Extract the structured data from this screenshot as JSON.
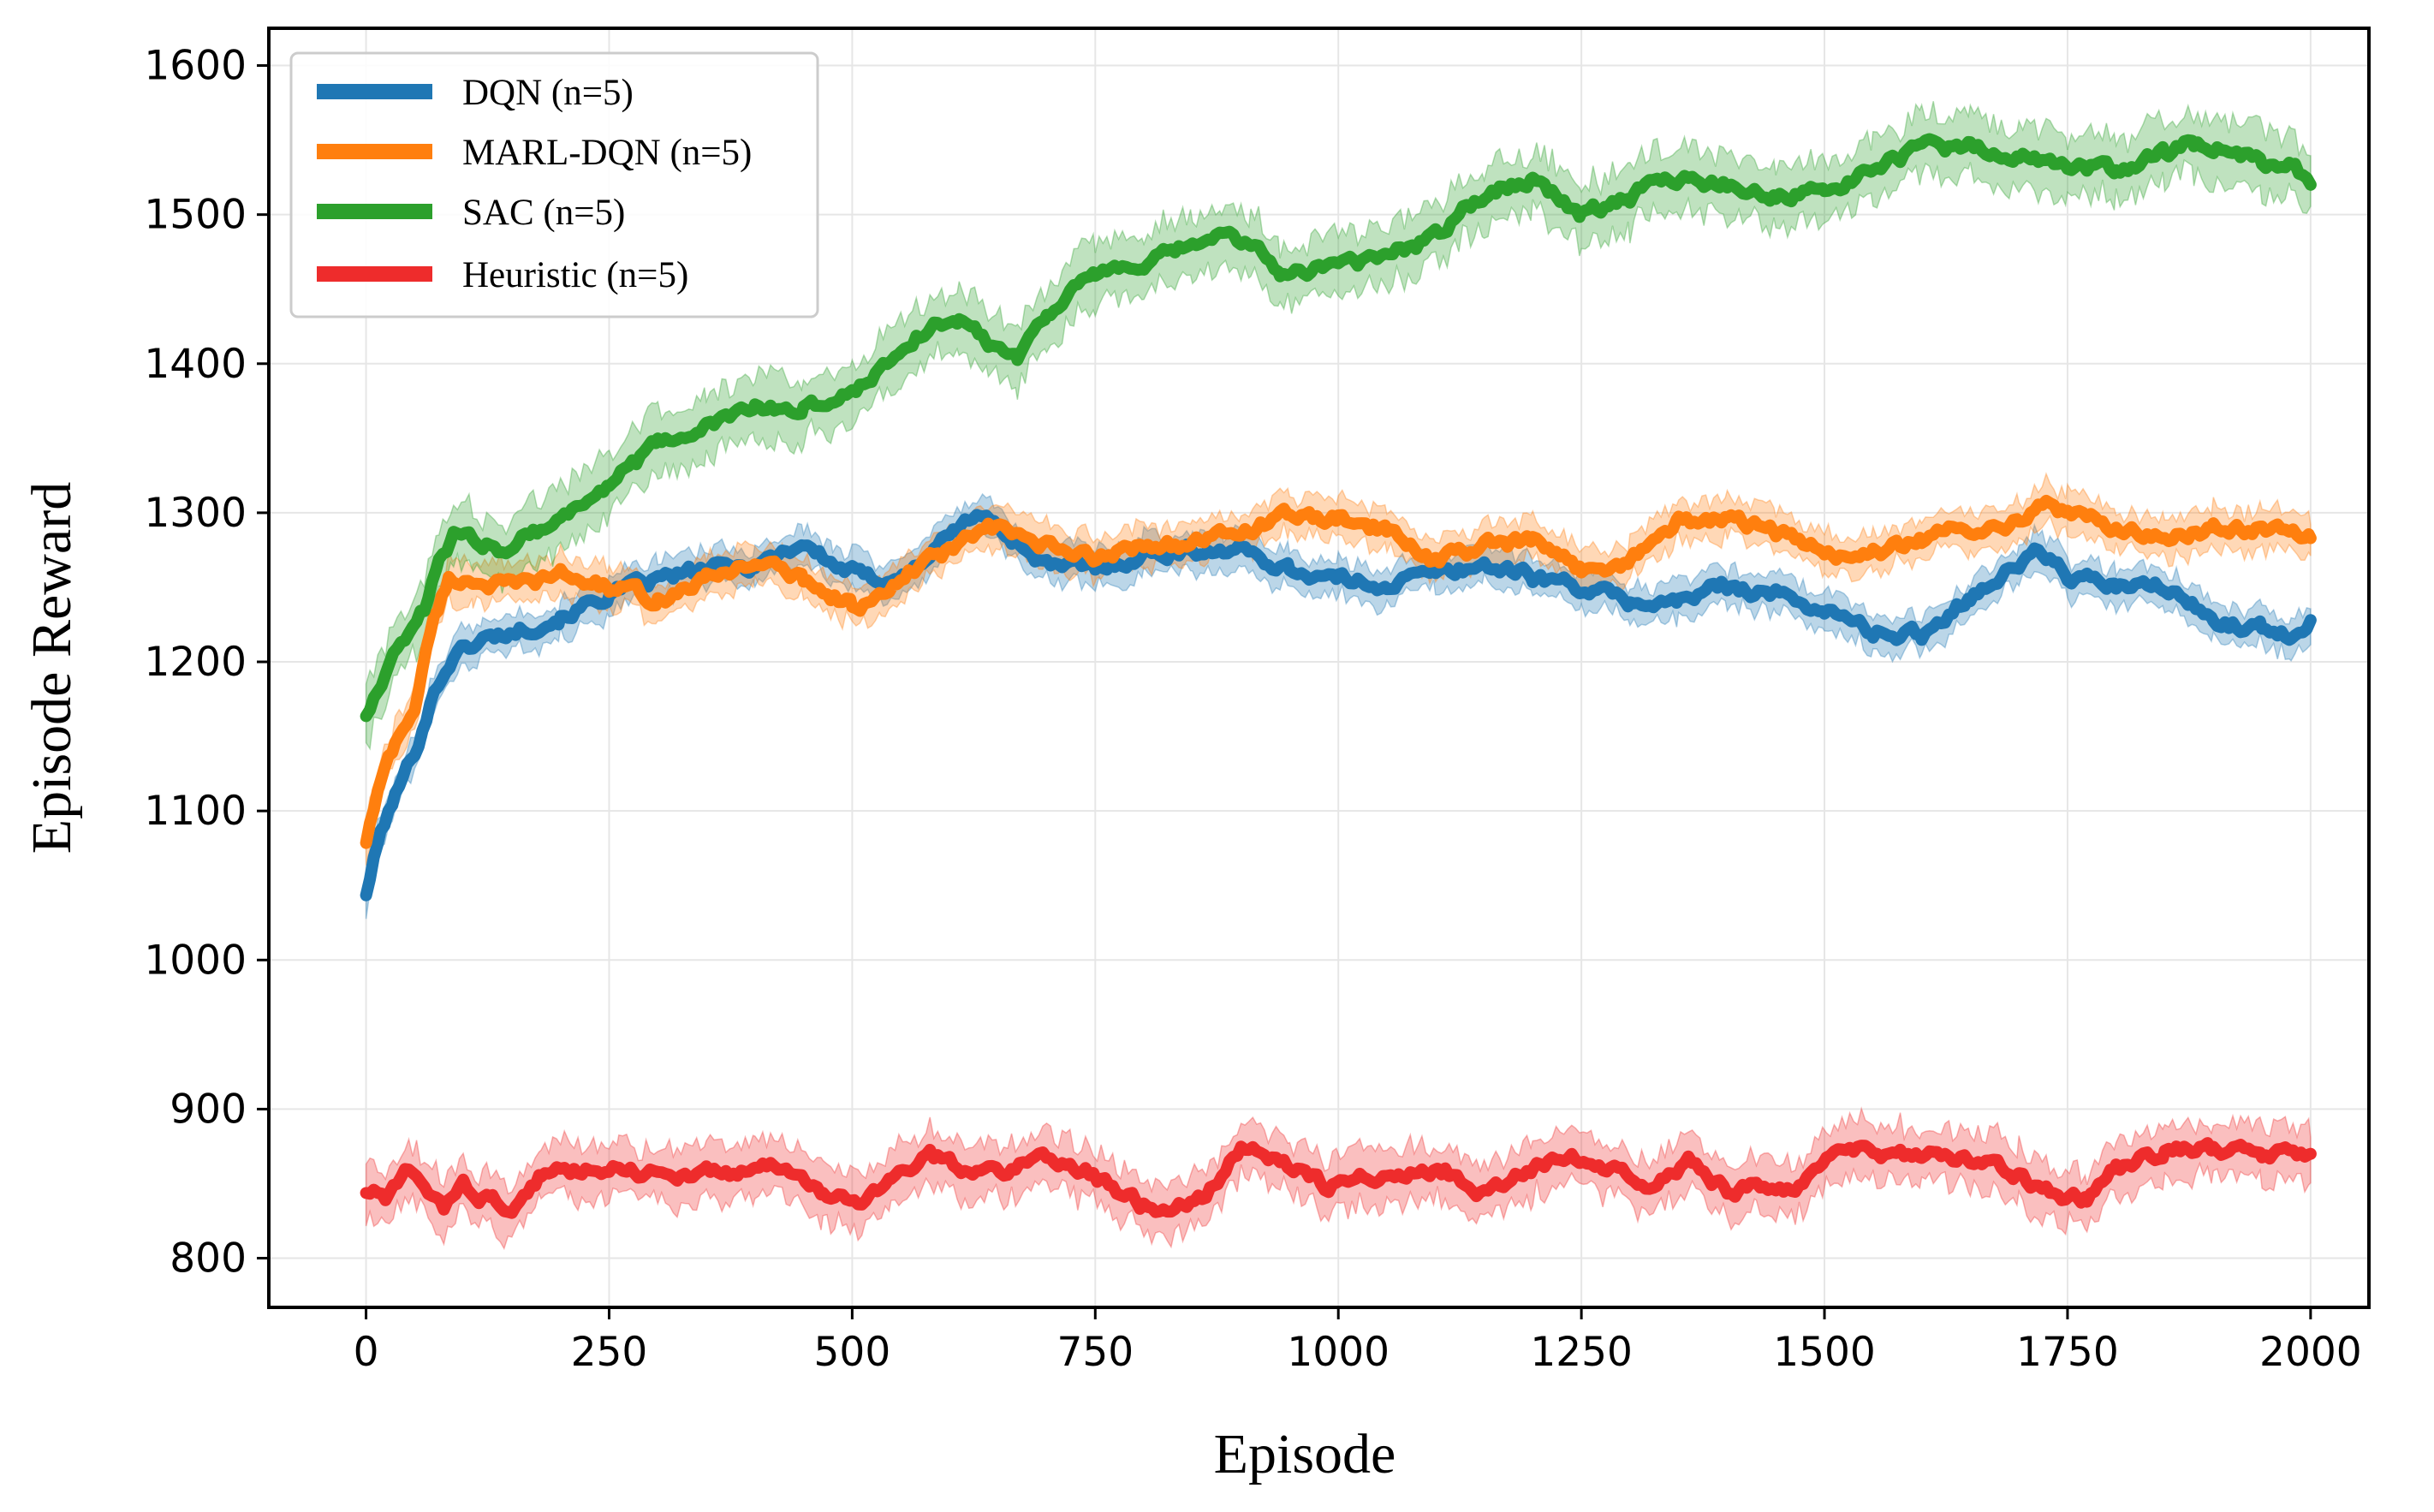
{
  "chart_data": {
    "type": "line",
    "title": "",
    "xlabel": "Episode",
    "ylabel": "Episode Reward",
    "xlim": [
      -100,
      2060
    ],
    "ylim": [
      767,
      1625
    ],
    "xticks": [
      0,
      250,
      500,
      750,
      1000,
      1250,
      1500,
      1750,
      2000
    ],
    "yticks": [
      800,
      900,
      1000,
      1100,
      1200,
      1300,
      1400,
      1500,
      1600
    ],
    "grid": true,
    "legend_position": "top-left",
    "series": [
      {
        "name": "DQN (n=5)",
        "color": "#1f77b4",
        "band": 12,
        "points": [
          [
            0,
            1045
          ],
          [
            15,
            1085
          ],
          [
            30,
            1110
          ],
          [
            50,
            1140
          ],
          [
            70,
            1180
          ],
          [
            90,
            1205
          ],
          [
            120,
            1215
          ],
          [
            150,
            1220
          ],
          [
            200,
            1230
          ],
          [
            250,
            1245
          ],
          [
            300,
            1255
          ],
          [
            350,
            1262
          ],
          [
            400,
            1265
          ],
          [
            450,
            1280
          ],
          [
            480,
            1265
          ],
          [
            520,
            1255
          ],
          [
            560,
            1260
          ],
          [
            600,
            1285
          ],
          [
            630,
            1300
          ],
          [
            660,
            1285
          ],
          [
            700,
            1265
          ],
          [
            750,
            1262
          ],
          [
            800,
            1272
          ],
          [
            850,
            1275
          ],
          [
            900,
            1275
          ],
          [
            950,
            1262
          ],
          [
            1000,
            1255
          ],
          [
            1050,
            1252
          ],
          [
            1100,
            1260
          ],
          [
            1150,
            1265
          ],
          [
            1200,
            1258
          ],
          [
            1250,
            1250
          ],
          [
            1300,
            1240
          ],
          [
            1350,
            1240
          ],
          [
            1400,
            1252
          ],
          [
            1450,
            1245
          ],
          [
            1500,
            1235
          ],
          [
            1550,
            1220
          ],
          [
            1600,
            1218
          ],
          [
            1650,
            1245
          ],
          [
            1700,
            1265
          ],
          [
            1720,
            1275
          ],
          [
            1750,
            1258
          ],
          [
            1800,
            1250
          ],
          [
            1850,
            1250
          ],
          [
            1900,
            1228
          ],
          [
            1950,
            1222
          ],
          [
            1980,
            1218
          ],
          [
            2000,
            1228
          ]
        ]
      },
      {
        "name": "MARL-DQN (n=5)",
        "color": "#ff7f0e",
        "band": 13,
        "points": [
          [
            0,
            1080
          ],
          [
            15,
            1120
          ],
          [
            30,
            1145
          ],
          [
            50,
            1170
          ],
          [
            70,
            1230
          ],
          [
            85,
            1255
          ],
          [
            110,
            1255
          ],
          [
            150,
            1250
          ],
          [
            200,
            1258
          ],
          [
            250,
            1250
          ],
          [
            300,
            1242
          ],
          [
            350,
            1255
          ],
          [
            400,
            1268
          ],
          [
            450,
            1255
          ],
          [
            500,
            1238
          ],
          [
            530,
            1242
          ],
          [
            560,
            1260
          ],
          [
            600,
            1275
          ],
          [
            640,
            1290
          ],
          [
            680,
            1282
          ],
          [
            720,
            1272
          ],
          [
            760,
            1270
          ],
          [
            800,
            1280
          ],
          [
            850,
            1278
          ],
          [
            900,
            1288
          ],
          [
            950,
            1298
          ],
          [
            1000,
            1295
          ],
          [
            1050,
            1288
          ],
          [
            1100,
            1268
          ],
          [
            1150,
            1278
          ],
          [
            1200,
            1280
          ],
          [
            1250,
            1262
          ],
          [
            1300,
            1268
          ],
          [
            1350,
            1295
          ],
          [
            1400,
            1295
          ],
          [
            1450,
            1288
          ],
          [
            1500,
            1272
          ],
          [
            1550,
            1272
          ],
          [
            1600,
            1282
          ],
          [
            1650,
            1290
          ],
          [
            1700,
            1295
          ],
          [
            1720,
            1308
          ],
          [
            1750,
            1300
          ],
          [
            1800,
            1290
          ],
          [
            1850,
            1282
          ],
          [
            1900,
            1290
          ],
          [
            1950,
            1290
          ],
          [
            2000,
            1283
          ]
        ]
      },
      {
        "name": "SAC (n=5)",
        "color": "#2ca02c",
        "band": 20,
        "points": [
          [
            0,
            1165
          ],
          [
            20,
            1195
          ],
          [
            40,
            1215
          ],
          [
            60,
            1235
          ],
          [
            75,
            1265
          ],
          [
            90,
            1285
          ],
          [
            120,
            1280
          ],
          [
            140,
            1275
          ],
          [
            160,
            1285
          ],
          [
            200,
            1295
          ],
          [
            250,
            1320
          ],
          [
            300,
            1345
          ],
          [
            350,
            1358
          ],
          [
            400,
            1370
          ],
          [
            450,
            1370
          ],
          [
            500,
            1380
          ],
          [
            550,
            1410
          ],
          [
            580,
            1425
          ],
          [
            610,
            1430
          ],
          [
            640,
            1415
          ],
          [
            670,
            1405
          ],
          [
            700,
            1435
          ],
          [
            750,
            1460
          ],
          [
            800,
            1465
          ],
          [
            850,
            1480
          ],
          [
            880,
            1485
          ],
          [
            910,
            1480
          ],
          [
            940,
            1462
          ],
          [
            980,
            1465
          ],
          [
            1040,
            1470
          ],
          [
            1100,
            1485
          ],
          [
            1150,
            1515
          ],
          [
            1200,
            1525
          ],
          [
            1250,
            1500
          ],
          [
            1300,
            1512
          ],
          [
            1340,
            1525
          ],
          [
            1400,
            1520
          ],
          [
            1450,
            1512
          ],
          [
            1500,
            1515
          ],
          [
            1550,
            1530
          ],
          [
            1600,
            1545
          ],
          [
            1650,
            1545
          ],
          [
            1700,
            1540
          ],
          [
            1750,
            1532
          ],
          [
            1800,
            1530
          ],
          [
            1850,
            1542
          ],
          [
            1880,
            1548
          ],
          [
            1920,
            1542
          ],
          [
            1950,
            1535
          ],
          [
            1980,
            1532
          ],
          [
            2000,
            1520
          ]
        ]
      },
      {
        "name": "Heuristic (n=5)",
        "color": "#ee2c2c",
        "band": 18,
        "points": [
          [
            0,
            845
          ],
          [
            20,
            840
          ],
          [
            40,
            855
          ],
          [
            60,
            848
          ],
          [
            80,
            835
          ],
          [
            100,
            848
          ],
          [
            130,
            838
          ],
          [
            150,
            832
          ],
          [
            180,
            855
          ],
          [
            210,
            860
          ],
          [
            260,
            862
          ],
          [
            300,
            856
          ],
          [
            350,
            856
          ],
          [
            400,
            860
          ],
          [
            440,
            860
          ],
          [
            470,
            840
          ],
          [
            510,
            838
          ],
          [
            540,
            855
          ],
          [
            580,
            868
          ],
          [
            620,
            858
          ],
          [
            660,
            860
          ],
          [
            700,
            868
          ],
          [
            740,
            860
          ],
          [
            780,
            840
          ],
          [
            820,
            830
          ],
          [
            860,
            840
          ],
          [
            900,
            875
          ],
          [
            950,
            862
          ],
          [
            990,
            848
          ],
          [
            1030,
            858
          ],
          [
            1070,
            855
          ],
          [
            1110,
            858
          ],
          [
            1150,
            842
          ],
          [
            1200,
            860
          ],
          [
            1240,
            870
          ],
          [
            1280,
            862
          ],
          [
            1320,
            852
          ],
          [
            1360,
            865
          ],
          [
            1400,
            845
          ],
          [
            1430,
            848
          ],
          [
            1470,
            845
          ],
          [
            1510,
            868
          ],
          [
            1550,
            872
          ],
          [
            1600,
            868
          ],
          [
            1650,
            865
          ],
          [
            1700,
            855
          ],
          [
            1740,
            840
          ],
          [
            1770,
            840
          ],
          [
            1800,
            860
          ],
          [
            1850,
            872
          ],
          [
            1900,
            873
          ],
          [
            1950,
            868
          ],
          [
            2000,
            870
          ]
        ]
      }
    ]
  }
}
